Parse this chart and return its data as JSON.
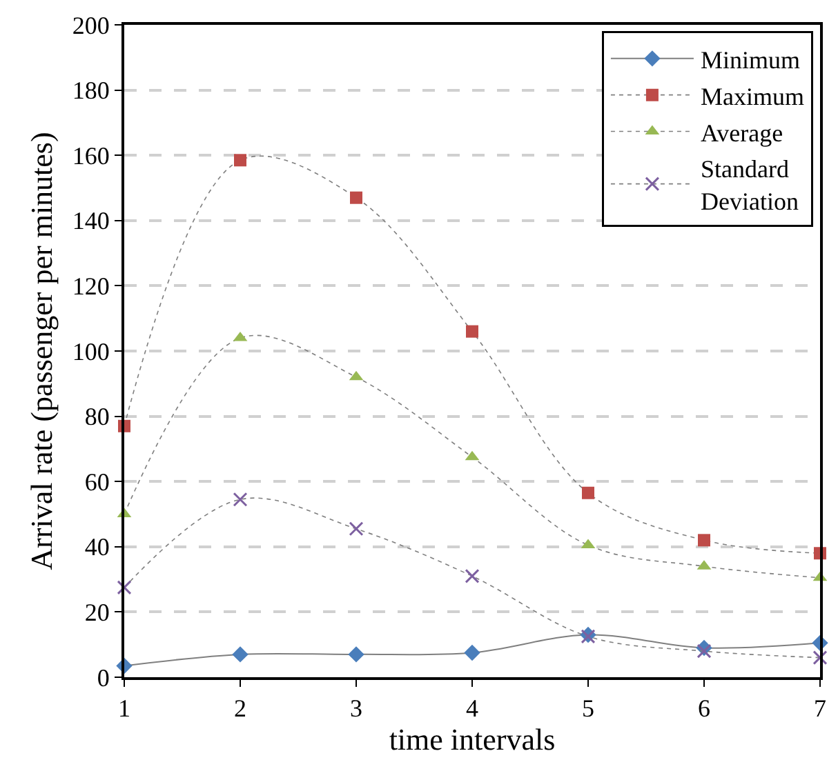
{
  "chart_data": {
    "type": "line",
    "xlabel": "time intervals",
    "ylabel": "Arrival rate (passenger per minutes)",
    "x": [
      1,
      2,
      3,
      4,
      5,
      6,
      7
    ],
    "xlim": [
      1,
      7
    ],
    "xticks": [
      1,
      2,
      3,
      4,
      5,
      6,
      7
    ],
    "ylim": [
      0,
      200
    ],
    "yticks": [
      0,
      20,
      40,
      60,
      80,
      100,
      120,
      140,
      160,
      180,
      200
    ],
    "grid": "y",
    "legend": "top right",
    "series": [
      {
        "name": "Minimum",
        "color": "#4a7ebb",
        "marker": "diamond",
        "line_style": "solid",
        "values": [
          3.5,
          7,
          7,
          7.5,
          13,
          9,
          10.5
        ]
      },
      {
        "name": "Maximum",
        "color": "#be4b48",
        "marker": "square",
        "line_style": "dotted",
        "values": [
          77,
          158.5,
          147,
          106,
          56.5,
          42,
          38
        ]
      },
      {
        "name": "Average",
        "color": "#98b954",
        "marker": "triangle",
        "line_style": "dotted",
        "values": [
          50,
          104,
          92,
          67.5,
          40.5,
          34,
          30.5
        ]
      },
      {
        "name": "Standard Deviation",
        "color": "#7d60a0",
        "marker": "cross",
        "line_style": "dotted",
        "values": [
          27.5,
          54.5,
          45.5,
          31,
          12.5,
          8,
          6
        ]
      }
    ]
  }
}
